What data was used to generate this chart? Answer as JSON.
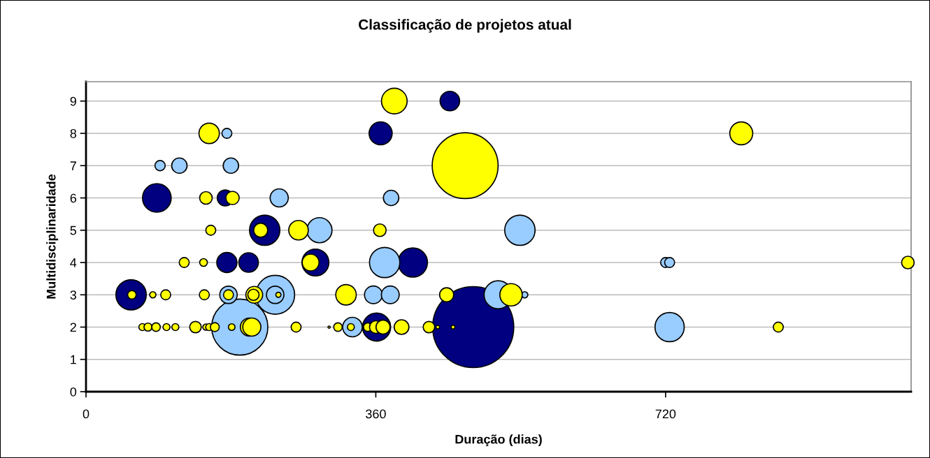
{
  "chart_data": {
    "type": "bubble",
    "title": "Classificação de projetos atual",
    "xlabel": "Duração (dias)",
    "ylabel": "Multidisciplinaridade",
    "xlim": [
      0,
      1025
    ],
    "xticks": [
      0,
      360,
      720
    ],
    "ylim": [
      0,
      9.6
    ],
    "yticks": [
      0,
      1,
      2,
      3,
      4,
      5,
      6,
      7,
      8,
      9
    ],
    "grid": "y",
    "legend": false,
    "series": [
      {
        "color": "#000080",
        "x": [
          481,
          452,
          366,
          88,
          173,
          222,
          175,
          202,
          285,
          406,
          56,
          361
        ],
        "values": [
          2,
          9,
          8,
          6,
          6,
          5,
          4,
          4,
          4,
          4,
          3,
          2
        ],
        "sizes": [
          1,
          0.058,
          0.081,
          0.125,
          0.039,
          0.14,
          0.062,
          0.058,
          0.11,
          0.13,
          0.14,
          0.12
        ]
      },
      {
        "color": "#99ccff",
        "x": [
          191,
          235,
          175,
          92,
          116,
          180,
          240,
          379,
          290,
          539,
          371,
          720,
          725,
          177,
          235,
          357,
          378,
          512,
          545,
          331,
          725
        ],
        "values": [
          2,
          3,
          8,
          7,
          7,
          7,
          6,
          6,
          5,
          5,
          4,
          4,
          4,
          3,
          3,
          3,
          3,
          3,
          3,
          2,
          2
        ],
        "sizes": [
          0.48,
          0.23,
          0.015,
          0.016,
          0.036,
          0.036,
          0.05,
          0.036,
          0.096,
          0.14,
          0.14,
          0.015,
          0.015,
          0.046,
          0.046,
          0.048,
          0.048,
          0.12,
          0.006,
          0.058,
          0.13
        ]
      },
      {
        "color": "#ffff00",
        "x": [
          471,
          383,
          814,
          153,
          149,
          182,
          155,
          217,
          264,
          365,
          122,
          146,
          279,
          1021,
          57,
          83,
          99,
          147,
          177,
          209,
          208,
          239,
          323,
          448,
          528,
          70,
          77,
          87,
          100,
          111,
          136,
          149,
          153,
          160,
          181,
          203,
          206,
          261,
          302,
          313,
          329,
          350,
          360,
          369,
          392,
          426,
          437,
          456,
          860
        ],
        "values": [
          7,
          9,
          8,
          8,
          6,
          6,
          5,
          5,
          5,
          5,
          4,
          4,
          4,
          4,
          3,
          3,
          3,
          3,
          3,
          3,
          3,
          3,
          3,
          3,
          3,
          2,
          2,
          2,
          2,
          2,
          2,
          2,
          2,
          2,
          2,
          2,
          2,
          2,
          2,
          2,
          2,
          2,
          2,
          2,
          2,
          2,
          2,
          2,
          2
        ],
        "sizes": [
          0.66,
          0.1,
          0.08,
          0.063,
          0.024,
          0.027,
          0.015,
          0.03,
          0.058,
          0.024,
          0.015,
          0.009,
          0.043,
          0.024,
          0.011,
          0.006,
          0.015,
          0.015,
          0.015,
          0.043,
          0.019,
          0.004,
          0.064,
          0.03,
          0.076,
          0.0074,
          0.0097,
          0.011,
          0.0074,
          0.0074,
          0.02,
          0.006,
          0.0074,
          0.012,
          0.0066,
          0.05,
          0.05,
          0.015,
          0.0007,
          0.011,
          0.0074,
          0.011,
          0.024,
          0.03,
          0.033,
          0.02,
          0.0019,
          0.0022,
          0.015
        ]
      }
    ]
  }
}
